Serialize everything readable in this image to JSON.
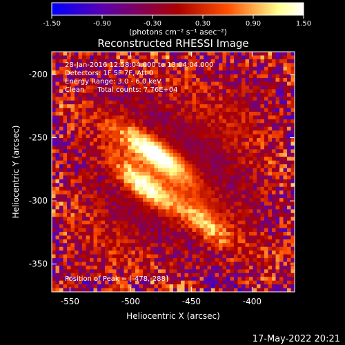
{
  "chart_data": {
    "type": "heatmap",
    "title": "Reconstructed RHESSI Image",
    "xlabel": "Heliocentric X (arcsec)",
    "ylabel": "Heliocentric Y (arcsec)",
    "xlim": [
      -565,
      -365
    ],
    "ylim": [
      -372,
      -182
    ],
    "x_ticks": [
      -550,
      -500,
      -450,
      -400
    ],
    "y_ticks": [
      -200,
      -250,
      -300,
      -350
    ],
    "x_tick_labels": [
      "-550",
      "-500",
      "-450",
      "-400"
    ],
    "y_tick_labels": [
      "-200",
      "-250",
      "-300",
      "-350"
    ],
    "colorbar": {
      "min": -1.5,
      "max": 1.5,
      "ticks": [
        -1.5,
        -0.9,
        -0.3,
        0.3,
        0.9,
        1.5
      ],
      "tick_labels": [
        "-1.50",
        "-0.90",
        "-0.30",
        "0.30",
        "0.90",
        "1.50"
      ],
      "unit_label": "(photons cm⁻² s⁻¹ asec⁻²)",
      "colors": [
        "#0000ff",
        "#5a00b0",
        "#aa0000",
        "#ff5000",
        "#ffff90",
        "#ffffff"
      ]
    },
    "annotations": [
      "28-Jan-2016 12:58:04.000 to 13:04:04.000",
      "Detectors: 1F 5F 7F, Att 0",
      "Energy Range: 3.0 - 6.0 keV",
      "Clean      Total counts: 7.76E+04",
      "Position of Peak = [-478,-288]"
    ],
    "peak": [
      -478,
      -288
    ],
    "sources": [
      {
        "x": -492,
        "y": -255,
        "amplitude": 0.9
      },
      {
        "x": -470,
        "y": -268,
        "amplitude": 1.15
      },
      {
        "x": -490,
        "y": -288,
        "amplitude": 1.5
      },
      {
        "x": -440,
        "y": -318,
        "amplitude": 0.9
      }
    ],
    "grid": false
  },
  "timestamp": "17-May-2022 20:21"
}
